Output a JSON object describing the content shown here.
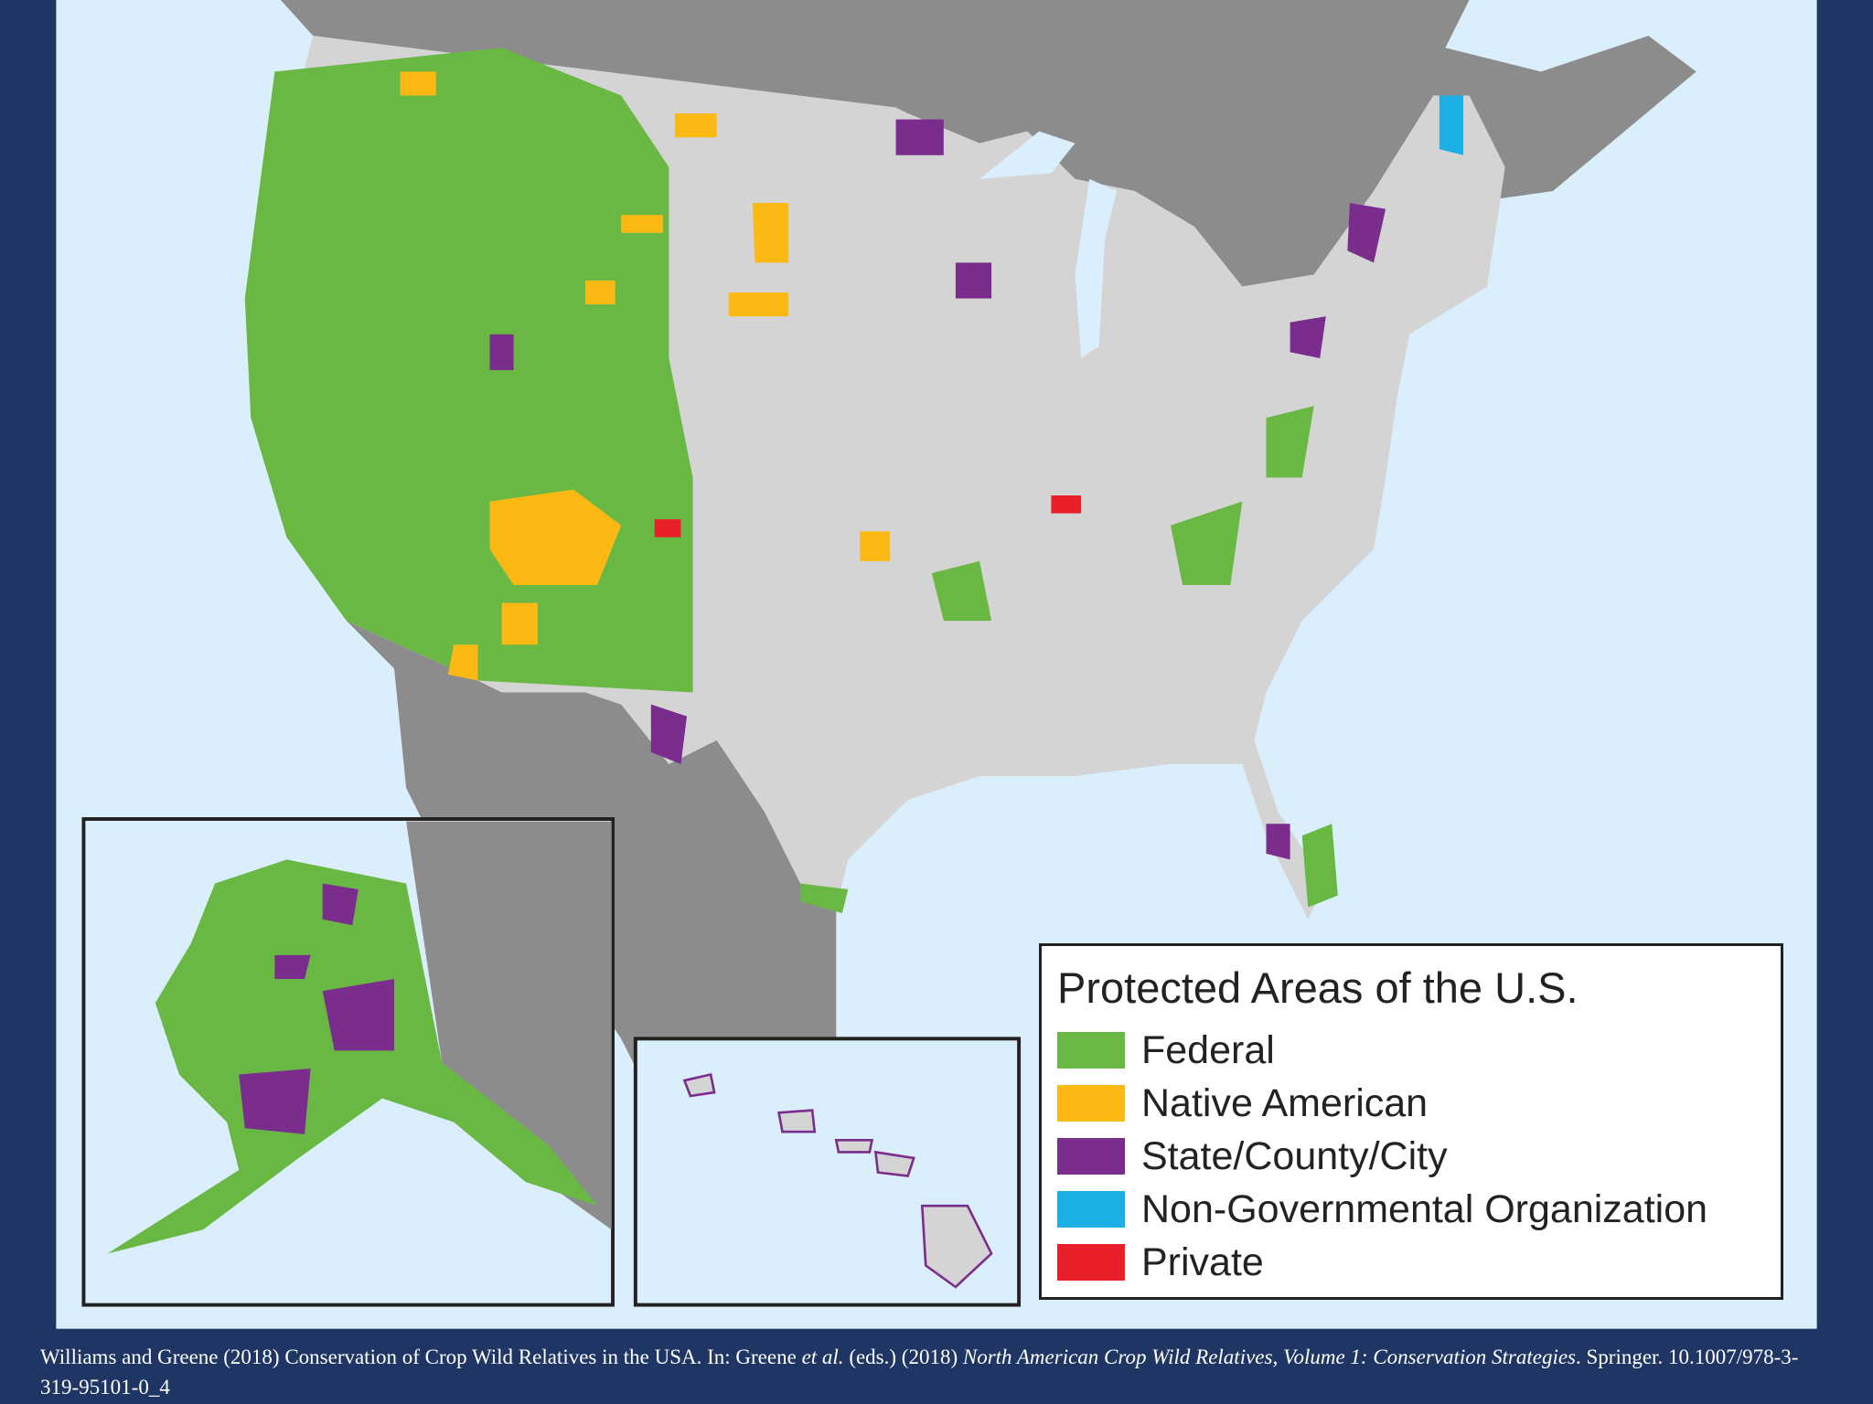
{
  "legend": {
    "title": "Protected Areas of the U.S.",
    "items": [
      {
        "label": "Federal",
        "color": "#6ab844"
      },
      {
        "label": "Native American",
        "color": "#fdb913"
      },
      {
        "label": "State/County/City",
        "color": "#7b2d8e"
      },
      {
        "label": "Non-Governmental Organization",
        "color": "#1cafe5"
      },
      {
        "label": "Private",
        "color": "#e8202a"
      }
    ]
  },
  "citation": {
    "parts": [
      {
        "text": "Williams and Greene (2018) Conservation of Crop Wild Relatives in the USA. In: Greene ",
        "italic": false
      },
      {
        "text": "et al.",
        "italic": true
      },
      {
        "text": " (eds.) (2018) ",
        "italic": false
      },
      {
        "text": "North American Crop Wild Relatives, Volume 1: Conservation Strategies",
        "italic": true
      },
      {
        "text": ". Springer. 10.1007/978-3-319-95101-0_4",
        "italic": false
      }
    ]
  }
}
